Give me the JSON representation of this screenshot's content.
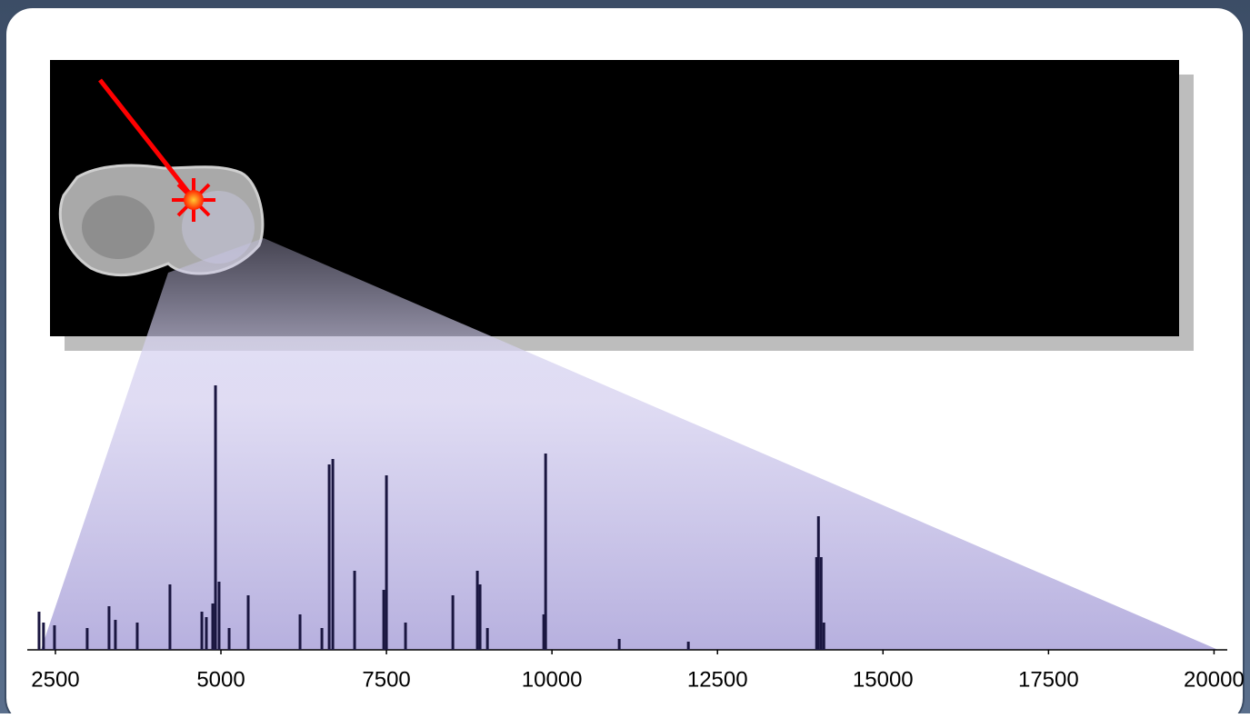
{
  "chart_data": {
    "type": "stem",
    "x": [
      2253,
      2320,
      2486,
      2980,
      3310,
      3406,
      3736,
      4230,
      4712,
      4780,
      4876,
      4918,
      4972,
      5124,
      5412,
      6195,
      6525,
      6635,
      6690,
      7019,
      7459,
      7500,
      7788,
      8503,
      8873,
      8914,
      9025,
      9876,
      9904,
      11016,
      12060,
      13997,
      14025,
      14066,
      14107
    ],
    "values": [
      14,
      10,
      9,
      8,
      16,
      11,
      10,
      24,
      14,
      12,
      17,
      97,
      25,
      8,
      20,
      13,
      8,
      68,
      70,
      29,
      22,
      64,
      10,
      20,
      29,
      24,
      8,
      13,
      72,
      4,
      3,
      34,
      49,
      34,
      10
    ],
    "color": "#1a1640",
    "xlim": [
      2075,
      20200
    ],
    "ylim": [
      0,
      100
    ],
    "xticks": [
      2500,
      5000,
      7500,
      10000,
      12500,
      15000,
      17500,
      20000
    ]
  }
}
